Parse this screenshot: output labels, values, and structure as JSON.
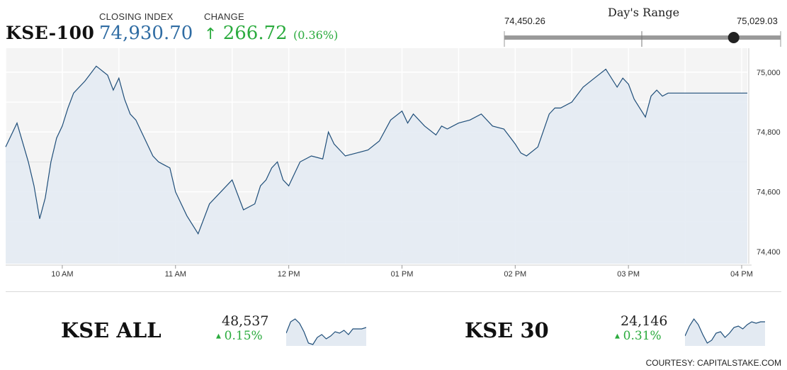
{
  "header": {
    "index_name": "KSE-100",
    "closing_label": "CLOSING INDEX",
    "closing_value": "74,930.70",
    "change_label": "CHANGE",
    "change_arrow": "↑",
    "change_value": "266.72",
    "change_pct": "(0.36%)",
    "day_range_label": "Day's Range",
    "day_range_low": "74,450.26",
    "day_range_high": "75,029.03",
    "day_range_position": 0.83
  },
  "colors": {
    "line": "#1f4e79",
    "fill": "#e3eaf2",
    "accent_blue": "#2f6ca3",
    "accent_green": "#2bab3e"
  },
  "chart_data": {
    "type": "area",
    "title": "",
    "xlabel": "",
    "ylabel": "",
    "x_ticks": [
      "10 AM",
      "11 AM",
      "12 PM",
      "01 PM",
      "02 PM",
      "03 PM",
      "04 PM"
    ],
    "y_ticks": [
      "75,000",
      "74,800",
      "74,600",
      "74,400"
    ],
    "ylim": [
      74360,
      75080
    ],
    "series": [
      {
        "x": [
          9.5,
          9.6,
          9.7,
          9.75,
          9.8,
          9.85,
          9.9,
          9.95,
          10.0,
          10.05,
          10.1,
          10.2,
          10.3,
          10.4,
          10.45,
          10.5,
          10.55,
          10.6,
          10.65,
          10.7,
          10.75,
          10.8,
          10.85,
          10.9,
          10.95,
          11.0,
          11.05,
          11.1,
          11.2,
          11.3,
          11.4,
          11.5,
          11.6,
          11.7,
          11.75,
          11.8,
          11.85,
          11.9,
          11.95,
          12.0,
          12.05,
          12.1,
          12.2,
          12.3,
          12.35,
          12.4,
          12.5,
          12.6,
          12.7,
          12.8,
          12.9,
          13.0,
          13.05,
          13.1,
          13.2,
          13.3,
          13.35,
          13.4,
          13.5,
          13.6,
          13.7,
          13.8,
          13.9,
          14.0,
          14.05,
          14.1,
          14.2,
          14.3,
          14.35,
          14.4,
          14.5,
          14.6,
          14.7,
          14.8,
          14.9,
          14.95,
          15.0,
          15.05,
          15.1,
          15.15,
          15.2,
          15.25,
          15.3,
          15.35,
          15.4,
          15.5,
          15.6,
          15.7,
          15.75,
          15.8,
          15.85,
          15.9,
          15.95,
          16.0,
          16.05
        ],
        "values": [
          74750,
          74830,
          74700,
          74620,
          74510,
          74580,
          74700,
          74780,
          74820,
          74880,
          74930,
          74970,
          75020,
          74990,
          74940,
          74980,
          74910,
          74860,
          74840,
          74800,
          74760,
          74720,
          74700,
          74690,
          74680,
          74600,
          74560,
          74520,
          74460,
          74560,
          74600,
          74640,
          74540,
          74560,
          74620,
          74640,
          74680,
          74700,
          74640,
          74620,
          74660,
          74700,
          74720,
          74710,
          74800,
          74760,
          74720,
          74730,
          74740,
          74770,
          74840,
          74870,
          74830,
          74860,
          74820,
          74790,
          74820,
          74810,
          74830,
          74840,
          74860,
          74820,
          74810,
          74760,
          74730,
          74720,
          74750,
          74860,
          74880,
          74880,
          74900,
          74950,
          74980,
          75010,
          74950,
          74980,
          74960,
          74910,
          74880,
          74850,
          74920,
          74940,
          74920,
          74930,
          74930,
          74930,
          74930,
          74930,
          74930,
          74930,
          74930,
          74930,
          74930,
          74930,
          74930
        ]
      }
    ],
    "grid": true
  },
  "bottom": {
    "kse_all": {
      "name": "KSE ALL",
      "value": "48,537",
      "change": "0.15%",
      "arrow": "▲",
      "spark": [
        30,
        14,
        10,
        16,
        28,
        44,
        46,
        36,
        32,
        38,
        34,
        28,
        30,
        26,
        32,
        24,
        24,
        24,
        22
      ]
    },
    "kse_30": {
      "name": "KSE 30",
      "value": "24,146",
      "change": "0.31%",
      "arrow": "▲",
      "spark": [
        34,
        20,
        10,
        18,
        32,
        44,
        40,
        30,
        28,
        36,
        30,
        22,
        20,
        24,
        18,
        14,
        16,
        14,
        14
      ]
    }
  },
  "courtesy": "COURTESY: CAPITALSTAKE.COM"
}
